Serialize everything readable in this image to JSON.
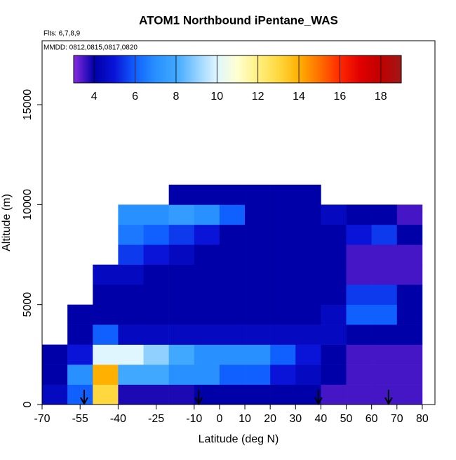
{
  "chart_data": {
    "type": "heatmap",
    "title": "ATOM1 Northbound iPentane_WAS",
    "annotations": [
      "Flts: 6,7,8,9",
      "MMDD: 0812,0815,0817,0820"
    ],
    "xlabel": "Latitude (deg N)",
    "ylabel": "Altitude (m)",
    "xlim": [
      -70,
      85
    ],
    "ylim": [
      0,
      18200
    ],
    "xticks": [
      -70,
      -55,
      -40,
      -25,
      -10,
      0,
      10,
      20,
      30,
      40,
      50,
      60,
      70,
      80
    ],
    "yticks": [
      0,
      5000,
      10000,
      15000
    ],
    "x_bins": [
      -70,
      -60,
      -50,
      -40,
      -30,
      -20,
      -10,
      0,
      10,
      20,
      30,
      40,
      50,
      60,
      70,
      80
    ],
    "y_bins": [
      0,
      1000,
      2000,
      3000,
      4000,
      5000,
      6000,
      7000,
      8000,
      9000,
      10000,
      11000
    ],
    "values": [
      [
        4.5,
        6,
        13,
        3.8,
        3.8,
        3.8,
        4,
        4,
        4,
        4,
        4,
        3.5,
        3.5,
        3.5,
        3.5
      ],
      [
        4,
        7,
        14,
        8,
        8,
        7,
        7,
        6,
        6,
        5,
        4.5,
        4,
        3.5,
        3.5,
        3.5
      ],
      [
        4,
        5,
        10,
        10,
        9,
        8,
        7,
        7,
        7,
        6,
        5,
        4,
        3.5,
        3.5,
        3.5
      ],
      [
        null,
        4,
        6,
        4.5,
        4.5,
        4.5,
        4.5,
        4.5,
        4.5,
        4.5,
        4.5,
        4.5,
        4,
        4,
        4
      ],
      [
        null,
        4,
        4,
        4,
        4,
        4,
        4,
        4,
        4,
        4,
        4,
        4.5,
        6,
        6,
        4
      ],
      [
        null,
        null,
        4,
        4,
        4,
        4,
        4,
        4,
        4,
        4,
        4,
        4,
        5.5,
        5.5,
        4
      ],
      [
        null,
        null,
        4.5,
        4.5,
        4,
        4,
        4,
        4,
        4,
        4,
        4,
        4,
        3.5,
        3.5,
        3.5
      ],
      [
        null,
        null,
        null,
        5.5,
        5,
        4.5,
        4,
        4,
        4,
        4,
        4,
        4,
        3.5,
        3.5,
        3.5
      ],
      [
        null,
        null,
        null,
        6.5,
        6,
        5.5,
        5,
        4,
        4,
        4,
        4,
        4,
        5,
        5.5,
        4
      ],
      [
        null,
        null,
        null,
        7,
        7,
        7.5,
        7,
        6,
        4,
        4,
        4,
        4.5,
        4,
        4,
        3.5
      ],
      [
        null,
        null,
        null,
        null,
        null,
        4,
        4,
        4,
        4,
        4,
        4,
        null,
        null,
        null,
        null
      ]
    ],
    "clim": [
      3,
      19
    ],
    "cticks": [
      4,
      6,
      8,
      10,
      12,
      14,
      16,
      18
    ],
    "colorscale": [
      "#8a2be2",
      "#0000a8",
      "#0a14d8",
      "#1060ff",
      "#2890ff",
      "#40a8ff",
      "#90d0ff",
      "#e0f6ff",
      "#ffffd0",
      "#fff080",
      "#ffd840",
      "#ffb000",
      "#ff7000",
      "#ff2800",
      "#e00000",
      "#c00000",
      "#a01818"
    ],
    "arrows": [
      -53.4,
      -8.2,
      39,
      66.7
    ]
  }
}
